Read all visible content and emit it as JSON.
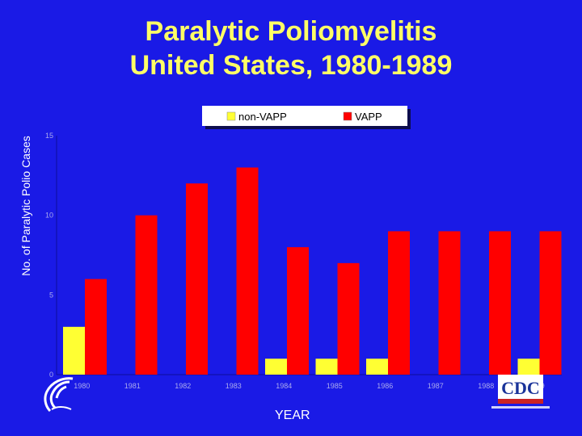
{
  "chart_data": {
    "type": "bar",
    "title": [
      "Paralytic Poliomyelitis",
      "United States, 1980-1989"
    ],
    "xlabel": "YEAR",
    "ylabel": "No. of Paralytic Polio Cases",
    "categories": [
      "1980",
      "1981",
      "1982",
      "1983",
      "1984",
      "1985",
      "1986",
      "1987",
      "1988",
      "1989"
    ],
    "series": [
      {
        "name": "non-VAPP",
        "color": "#ffff33",
        "values": [
          3,
          0,
          0,
          0,
          1,
          1,
          1,
          0,
          0,
          1
        ]
      },
      {
        "name": "VAPP",
        "color": "#ff0000",
        "values": [
          6,
          10,
          12,
          13,
          8,
          7,
          9,
          9,
          9,
          9
        ]
      }
    ],
    "yticks": [
      "0",
      "5",
      "10",
      "15"
    ],
    "ylim": [
      0,
      15
    ],
    "grid": false,
    "legend": "top"
  },
  "footer": {
    "hhs_logo_icon": "hhs-eagle-icon",
    "cdc_logo_icon": "cdc-logo-icon",
    "cdc_logo_text": "CDC"
  }
}
